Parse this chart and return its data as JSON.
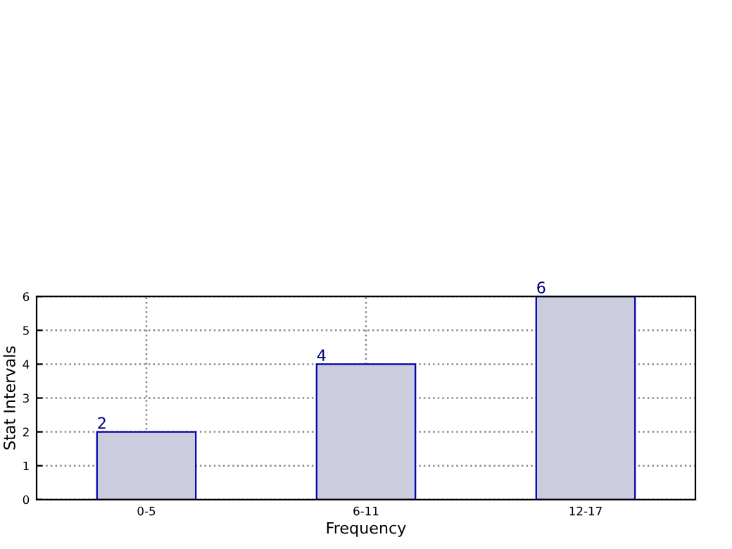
{
  "chart_data": {
    "type": "bar",
    "xlabel": "Frequency",
    "ylabel": "Stat Intervals",
    "categories": [
      "0-5",
      "6-11",
      "12-17"
    ],
    "series": [
      {
        "color": "#ccccdf",
        "values": [
          2,
          4,
          6
        ]
      }
    ],
    "ylim": [
      0,
      6
    ],
    "yticks": [
      0,
      1,
      2,
      3,
      4,
      5,
      6
    ],
    "grid": true,
    "data_labels": true
  }
}
